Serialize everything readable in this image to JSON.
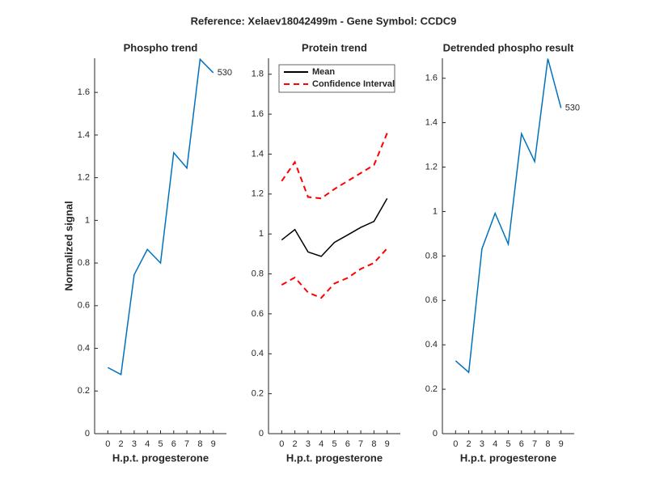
{
  "title": "Reference:  Xelaev18042499m - Gene Symbol:  CCDC9",
  "chart_data": [
    {
      "type": "line",
      "title": "Phospho trend",
      "xlabel": "H.p.t. progesterone",
      "ylabel": "Normalized signal",
      "categories": [
        "0",
        "2",
        "3",
        "4",
        "5",
        "6",
        "7",
        "8",
        "9"
      ],
      "series": [
        {
          "name": "530",
          "color": "#0072bd",
          "values": [
            0.31,
            0.277,
            0.745,
            0.864,
            0.8,
            1.317,
            1.245,
            1.755,
            1.692
          ]
        }
      ],
      "end_label": "530",
      "ylim": [
        0,
        1.76
      ],
      "yticks": [
        0,
        0.2,
        0.4,
        0.6,
        0.8,
        1,
        1.2,
        1.4,
        1.6
      ]
    },
    {
      "type": "band",
      "title": "Protein trend",
      "xlabel": "H.p.t. progesterone",
      "categories": [
        "0",
        "2",
        "3",
        "4",
        "5",
        "6",
        "7",
        "8",
        "9"
      ],
      "series": [
        {
          "name": "Mean",
          "color": "#000000",
          "values": [
            0.97,
            1.022,
            0.91,
            0.888,
            0.958,
            0.995,
            1.033,
            1.063,
            1.178
          ]
        },
        {
          "name": "Confidence Interval",
          "color": "#ff0000",
          "dashed": true,
          "values": [
            1.265,
            1.36,
            1.185,
            1.178,
            1.225,
            1.265,
            1.305,
            1.345,
            1.505
          ],
          "lower": [
            0.745,
            0.782,
            0.707,
            0.68,
            0.752,
            0.78,
            0.825,
            0.855,
            0.928
          ]
        }
      ],
      "legend": "northwest",
      "ylim": [
        0,
        1.88
      ],
      "yticks": [
        0,
        0.2,
        0.4,
        0.6,
        0.8,
        1,
        1.2,
        1.4,
        1.6,
        1.8
      ]
    },
    {
      "type": "line",
      "title": "Detrended phospho result",
      "xlabel": "H.p.t. progesterone",
      "categories": [
        "0",
        "2",
        "3",
        "4",
        "5",
        "6",
        "7",
        "8",
        "9"
      ],
      "series": [
        {
          "name": "530",
          "color": "#0072bd",
          "values": [
            0.328,
            0.276,
            0.832,
            0.992,
            0.853,
            1.35,
            1.225,
            1.688,
            1.466
          ]
        }
      ],
      "end_label": "530",
      "ylim": [
        0,
        1.69
      ],
      "yticks": [
        0,
        0.2,
        0.4,
        0.6,
        0.8,
        1,
        1.2,
        1.4,
        1.6
      ]
    }
  ]
}
